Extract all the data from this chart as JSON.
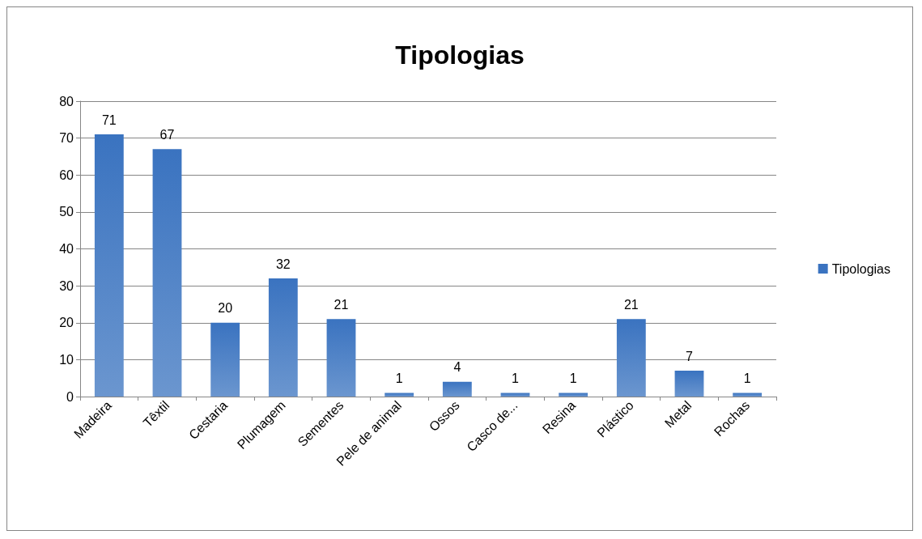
{
  "chart_data": {
    "type": "bar",
    "title": "Tipologias",
    "categories": [
      "Madeira",
      "Têxtil",
      "Cestaria",
      "Plumagem",
      "Sementes",
      "Pele de animal",
      "Ossos",
      "Casco de...",
      "Resina",
      "Plástico",
      "Metal",
      "Rochas"
    ],
    "series": [
      {
        "name": "Tipologias",
        "color": "#3a73c0",
        "values": [
          71,
          67,
          20,
          32,
          21,
          1,
          4,
          1,
          1,
          21,
          7,
          1
        ]
      }
    ],
    "ylim": [
      0,
      80
    ],
    "yticks": [
      0,
      10,
      20,
      30,
      40,
      50,
      60,
      70,
      80
    ],
    "grid": "y",
    "legend": "right",
    "data_labels": true
  }
}
